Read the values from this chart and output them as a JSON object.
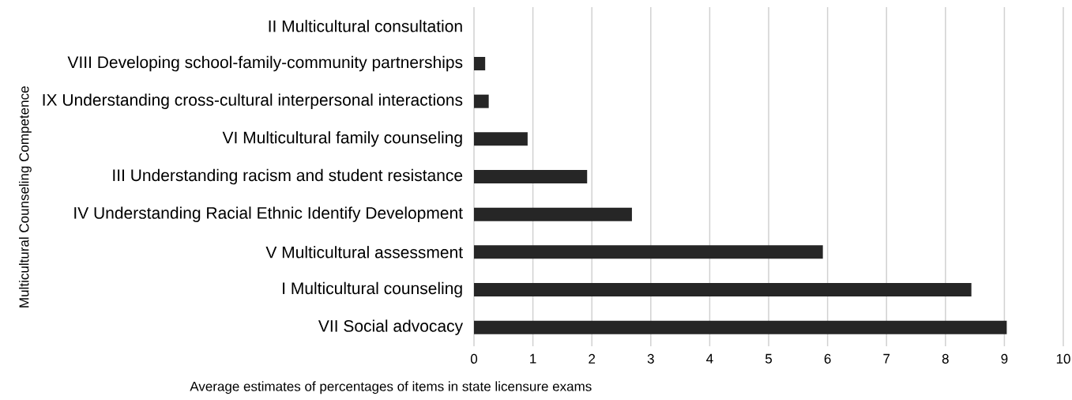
{
  "chart_data": {
    "type": "bar",
    "orientation": "horizontal",
    "ylabel": "Multicultural Counseling Competence",
    "xlabel": "Average estimates of percentages of items in state licensure exams",
    "categories": [
      "II Multicultural consultation",
      "VIII Developing school-family-community partnerships",
      "IX Understanding cross-cultural interpersonal interactions",
      "VI Multicultural family counseling",
      "III Understanding racism and student resistance",
      "IV Understanding Racial Ethnic Identify Development",
      "V Multicultural assessment",
      "I Multicultural counseling",
      "VII Social advocacy"
    ],
    "values": [
      0,
      0.19,
      0.25,
      0.91,
      1.92,
      2.68,
      5.92,
      8.44,
      9.04
    ],
    "color": "#262626",
    "xlim": [
      0,
      10
    ],
    "xticks": [
      0,
      1,
      2,
      3,
      4,
      5,
      6,
      7,
      8,
      9,
      10
    ],
    "grid": "x"
  }
}
